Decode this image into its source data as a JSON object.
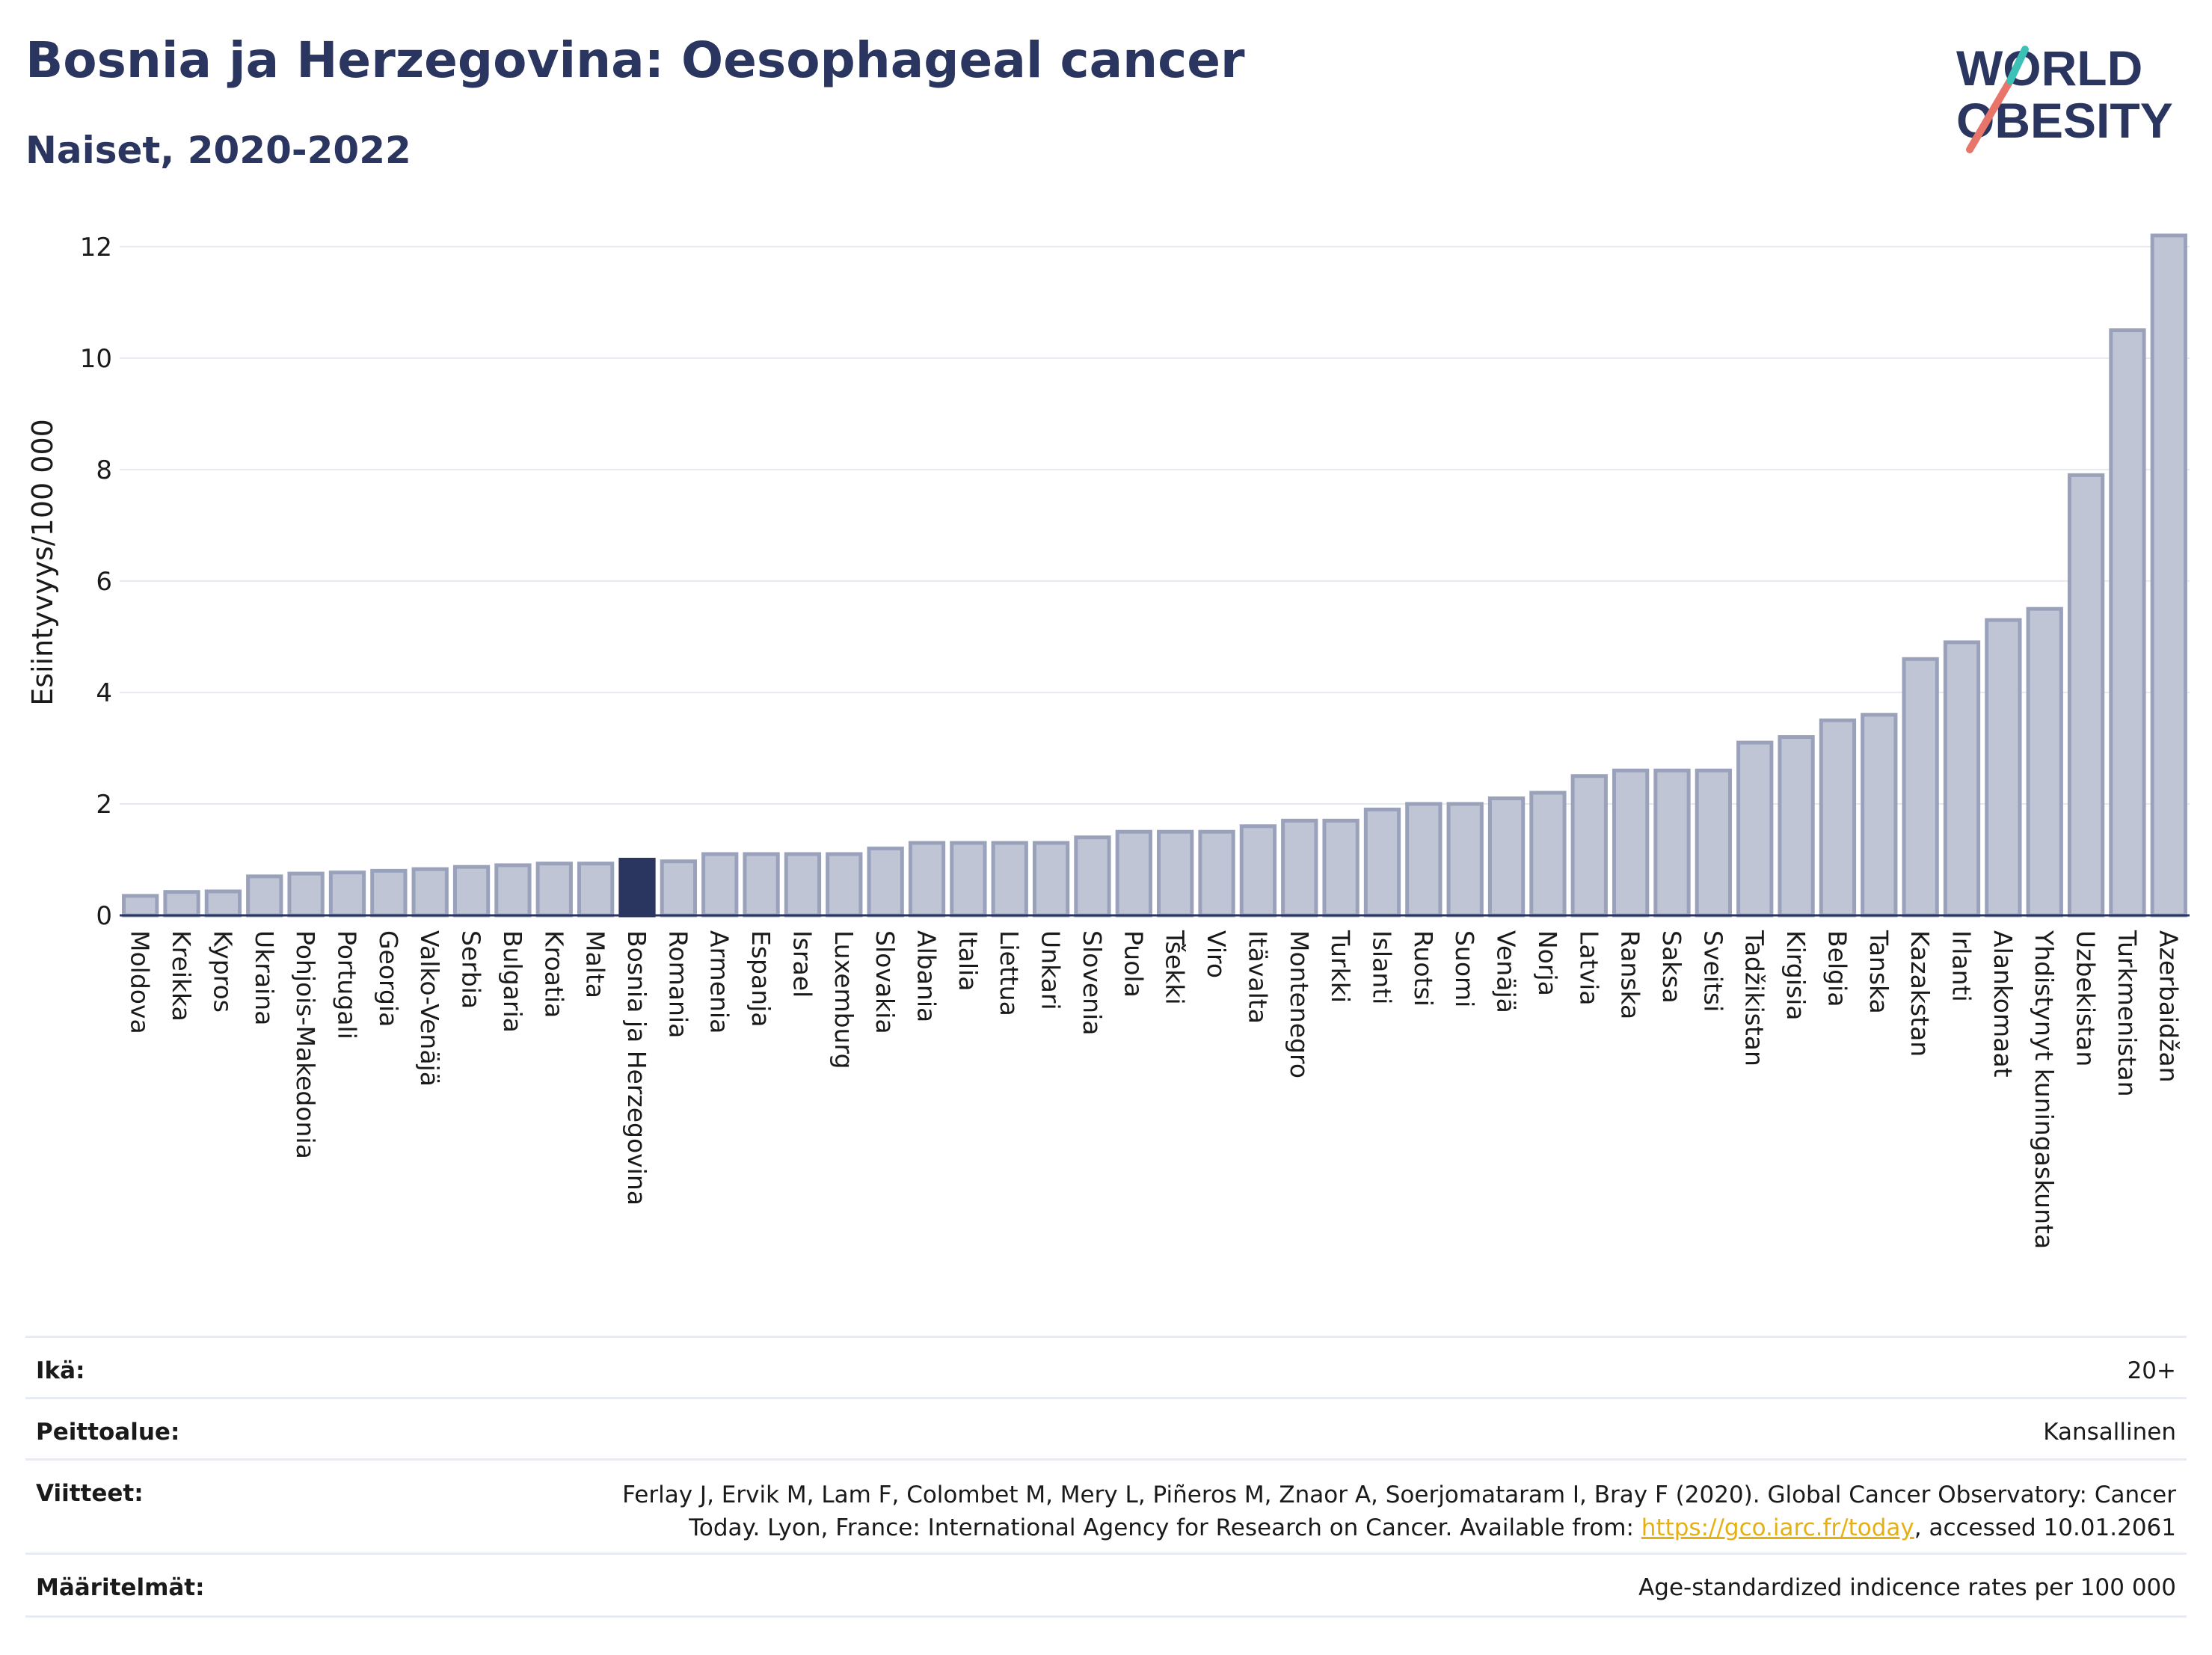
{
  "header": {
    "title": "Bosnia ja Herzegovina: Oesophageal cancer",
    "subtitle": "Naiset, 2020-2022"
  },
  "logo": {
    "line1": "WORLD",
    "line2": "OBESITY",
    "accent_colors": [
      "#e8756a",
      "#3cc1b7"
    ]
  },
  "colors": {
    "bar": "#bfc5d5",
    "bar_stroke": "#9aa2bb",
    "highlight": "#2b3660",
    "grid": "#e6e9f0",
    "axis": "#2b3660"
  },
  "chart_data": {
    "type": "bar",
    "title": "Bosnia ja Herzegovina: Oesophageal cancer",
    "subtitle": "Naiset, 2020-2022",
    "xlabel": "",
    "ylabel": "Esiintyvyys/100 000",
    "ylim": [
      0,
      12.4
    ],
    "yticks": [
      0,
      2,
      4,
      6,
      8,
      10,
      12
    ],
    "grid": true,
    "highlight": "Bosnia ja Herzegovina",
    "categories": [
      "Moldova",
      "Kreikka",
      "Kypros",
      "Ukraina",
      "Pohjois-Makedonia",
      "Portugali",
      "Georgia",
      "Valko-Venäjä",
      "Serbia",
      "Bulgaria",
      "Kroatia",
      "Malta",
      "Bosnia ja Herzegovina",
      "Romania",
      "Armenia",
      "Espanja",
      "Israel",
      "Luxemburg",
      "Slovakia",
      "Albania",
      "Italia",
      "Liettua",
      "Unkari",
      "Slovenia",
      "Puola",
      "Tšekki",
      "Viro",
      "Itävalta",
      "Montenegro",
      "Turkki",
      "Islanti",
      "Ruotsi",
      "Suomi",
      "Venäjä",
      "Norja",
      "Latvia",
      "Ranska",
      "Saksa",
      "Sveitsi",
      "Tadžikistan",
      "Kirgisia",
      "Belgia",
      "Tanska",
      "Kazakstan",
      "Irlanti",
      "Alankomaat",
      "Yhdistynyt kuningaskunta",
      "Uzbekistan",
      "Turkmenistan",
      "Azerbaidžan"
    ],
    "values": [
      0.35,
      0.42,
      0.43,
      0.7,
      0.75,
      0.77,
      0.8,
      0.83,
      0.87,
      0.9,
      0.93,
      0.93,
      1.0,
      0.97,
      1.1,
      1.1,
      1.1,
      1.1,
      1.2,
      1.3,
      1.3,
      1.3,
      1.3,
      1.4,
      1.5,
      1.5,
      1.5,
      1.6,
      1.7,
      1.7,
      1.9,
      2.0,
      2.0,
      2.1,
      2.2,
      2.5,
      2.6,
      2.6,
      2.6,
      3.1,
      3.2,
      3.5,
      3.6,
      4.6,
      4.9,
      5.3,
      5.5,
      7.9,
      10.5,
      12.2
    ]
  },
  "meta": {
    "age_label": "Ikä:",
    "age_value": "20+",
    "coverage_label": "Peittoalue:",
    "coverage_value": "Kansallinen",
    "refs_label": "Viitteet:",
    "refs_line1": "Ferlay J, Ervik M, Lam F, Colombet M, Mery L, Piñeros M, Znaor A, Soerjomataram I, Bray F (2020). Global Cancer Observatory: Cancer",
    "refs_line2_pre": "Today. Lyon, France: International Agency for Research on Cancer. Available from: ",
    "refs_link": "https://gco.iarc.fr/today",
    "refs_line2_post": ", accessed 10.01.2061",
    "defs_label": "Määritelmät:",
    "defs_value": "Age-standardized indicence rates per 100 000"
  }
}
